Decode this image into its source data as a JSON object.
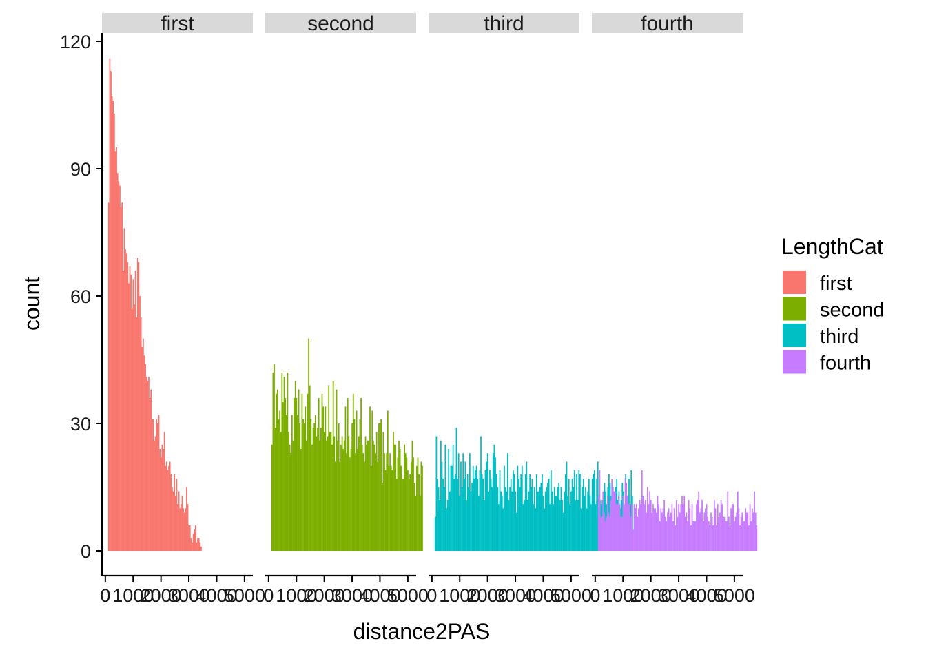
{
  "chart_data": {
    "type": "bar",
    "subtype": "faceted-histogram",
    "xlabel": "distance2PAS",
    "ylabel": "count",
    "ylim": [
      0,
      122
    ],
    "y_ticks": [
      0,
      30,
      60,
      90,
      120
    ],
    "xlim": [
      -120,
      5300
    ],
    "x_ticks": [
      0,
      1000,
      2000,
      3000,
      4000,
      5000
    ],
    "x_tick_labels": [
      "0",
      "1000",
      "2000",
      "3000",
      "4000",
      "5000"
    ],
    "bin_start": 100,
    "bin_width": 40,
    "legend": {
      "title": "LengthCat",
      "position": "right"
    },
    "grid": false,
    "facets": [
      {
        "label": "first",
        "color": "#F8766D",
        "values": [
          82,
          116,
          113,
          107,
          106,
          103,
          94,
          95,
          89,
          87,
          86,
          81,
          82,
          66,
          76,
          71,
          70,
          68,
          63,
          67,
          65,
          57,
          64,
          58,
          66,
          55,
          69,
          68,
          60,
          55,
          48,
          50,
          46,
          44,
          41,
          40,
          41,
          36,
          38,
          31,
          31,
          26,
          27,
          31,
          30,
          32,
          24,
          22,
          25,
          24,
          28,
          20,
          21,
          19,
          20,
          21,
          18,
          15,
          14,
          18,
          13,
          17,
          11,
          14,
          10,
          11,
          13,
          10,
          9,
          10,
          15,
          11,
          6,
          6,
          3,
          2,
          4,
          5,
          6,
          2,
          3,
          3,
          2,
          1
        ]
      },
      {
        "label": "second",
        "color": "#7CAE00",
        "values": [
          25,
          42,
          44,
          29,
          37,
          38,
          31,
          33,
          28,
          42,
          35,
          41,
          36,
          32,
          42,
          28,
          25,
          23,
          32,
          26,
          36,
          40,
          36,
          32,
          38,
          30,
          24,
          37,
          31,
          30,
          34,
          26,
          37,
          50,
          39,
          31,
          25,
          29,
          30,
          32,
          27,
          29,
          36,
          26,
          29,
          37,
          34,
          28,
          34,
          26,
          27,
          39,
          28,
          28,
          25,
          40,
          27,
          21,
          38,
          26,
          30,
          21,
          25,
          27,
          24,
          26,
          34,
          23,
          36,
          27,
          22,
          24,
          30,
          37,
          31,
          23,
          33,
          24,
          27,
          31,
          36,
          25,
          23,
          21,
          27,
          25,
          26,
          26,
          34,
          20,
          33,
          26,
          25,
          23,
          28,
          21,
          30,
          30,
          31,
          16,
          28,
          23,
          19,
          23,
          33,
          20,
          23,
          20,
          19,
          28,
          25,
          25,
          17,
          22,
          26,
          24,
          20,
          17,
          17,
          25,
          23,
          22,
          19,
          17,
          18,
          21,
          26,
          22,
          16,
          13,
          20,
          22,
          18,
          13,
          21,
          20
        ]
      },
      {
        "label": "third",
        "color": "#00BFC4",
        "values": [
          8,
          27,
          17,
          15,
          12,
          26,
          21,
          17,
          15,
          25,
          10,
          12,
          24,
          14,
          20,
          20,
          25,
          17,
          18,
          29,
          17,
          23,
          13,
          21,
          15,
          23,
          17,
          21,
          12,
          18,
          15,
          23,
          14,
          16,
          20,
          17,
          19,
          20,
          17,
          13,
          19,
          27,
          18,
          17,
          12,
          19,
          21,
          23,
          14,
          19,
          17,
          15,
          23,
          25,
          22,
          18,
          15,
          11,
          19,
          14,
          13,
          10,
          20,
          15,
          14,
          23,
          12,
          15,
          17,
          14,
          19,
          18,
          14,
          9,
          20,
          17,
          15,
          18,
          20,
          11,
          12,
          18,
          21,
          12,
          14,
          18,
          15,
          17,
          11,
          15,
          10,
          18,
          14,
          14,
          15,
          16,
          18,
          13,
          10,
          14,
          15,
          16,
          17,
          11,
          19,
          14,
          11,
          15,
          13,
          13,
          15,
          16,
          12,
          15,
          12,
          9,
          14,
          18,
          21,
          13,
          17,
          11,
          14,
          17,
          15,
          19,
          12,
          18,
          12,
          19,
          18,
          10,
          15,
          17,
          13,
          15,
          10,
          14,
          17,
          13,
          11,
          17,
          18,
          19,
          11,
          17,
          21,
          13,
          12,
          11,
          12,
          13,
          16,
          14,
          11,
          15,
          18,
          16,
          13,
          12,
          11,
          14,
          15,
          17,
          12,
          14,
          10,
          12,
          16,
          14,
          10,
          18,
          12,
          13,
          17,
          11,
          19,
          13
        ]
      },
      {
        "label": "fourth",
        "color": "#C77CFF",
        "values": [
          13,
          19,
          8,
          8,
          14,
          9,
          7,
          8,
          13,
          9,
          8,
          12,
          17,
          15,
          14,
          14,
          11,
          11,
          13,
          11,
          8,
          8,
          13,
          11,
          17,
          16,
          13,
          11,
          11,
          8,
          11,
          5,
          11,
          10,
          11,
          8,
          10,
          12,
          11,
          19,
          13,
          11,
          12,
          9,
          15,
          11,
          14,
          12,
          9,
          11,
          10,
          10,
          9,
          13,
          11,
          7,
          10,
          9,
          10,
          12,
          8,
          7,
          9,
          10,
          8,
          9,
          11,
          7,
          10,
          6,
          12,
          8,
          11,
          9,
          11,
          13,
          11,
          13,
          8,
          9,
          7,
          12,
          10,
          6,
          11,
          7,
          7,
          7,
          11,
          12,
          14,
          9,
          10,
          12,
          7,
          9,
          10,
          11,
          8,
          7,
          6,
          9,
          8,
          6,
          12,
          10,
          6,
          11,
          8,
          9,
          12,
          11,
          8,
          8,
          7,
          7,
          14,
          8,
          6,
          10,
          11,
          11,
          7,
          8,
          9,
          14,
          10,
          6,
          8,
          9,
          7,
          7,
          10,
          9,
          9,
          6,
          11,
          7,
          10,
          9,
          14,
          9,
          6
        ]
      }
    ]
  }
}
